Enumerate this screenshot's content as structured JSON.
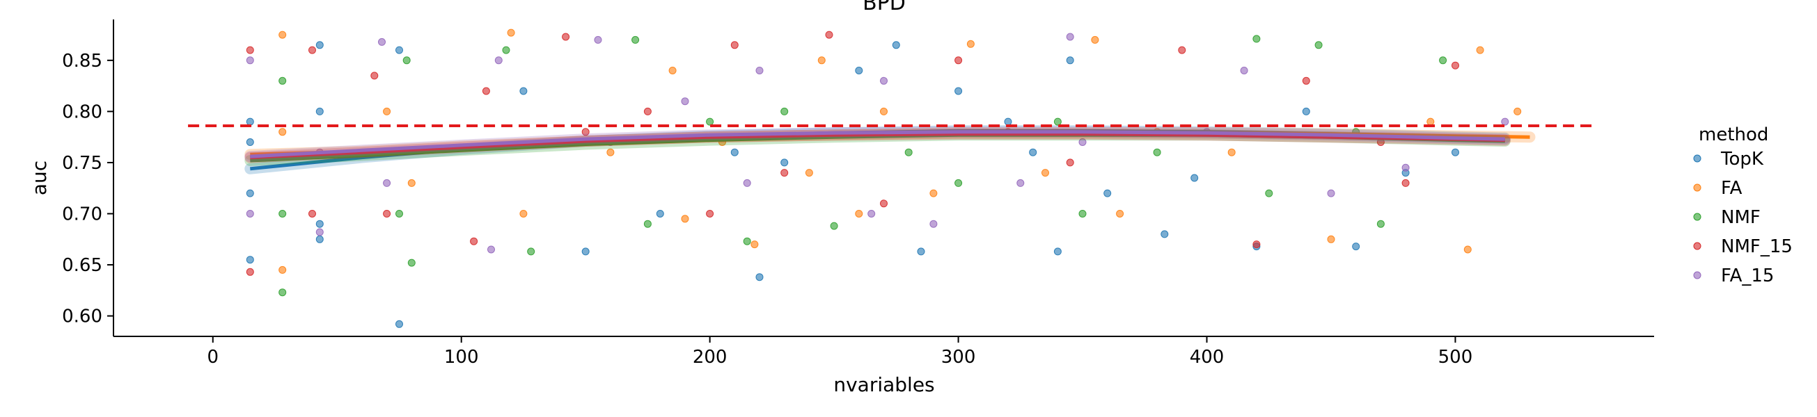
{
  "chart_data": {
    "type": "scatter",
    "title": "BPD",
    "xlabel": "nvariables",
    "ylabel": "auc",
    "xlim": [
      -40,
      580
    ],
    "ylim": [
      0.58,
      0.89
    ],
    "xticks": [
      0,
      100,
      200,
      300,
      400,
      500
    ],
    "yticks": [
      0.6,
      0.65,
      0.7,
      0.75,
      0.8,
      0.85
    ],
    "grid": false,
    "legend": {
      "title": "method",
      "placement": "outside-right"
    },
    "reference_line": {
      "y": 0.786,
      "color": "#e31a1c",
      "style": "dashed",
      "x_range": [
        -10,
        555
      ]
    },
    "series": [
      {
        "name": "TopK",
        "color": "#1f77b4",
        "trend": {
          "x": [
            15,
            60,
            100,
            150,
            200,
            250,
            300,
            350,
            400,
            450,
            500,
            520
          ],
          "y": [
            0.744,
            0.755,
            0.763,
            0.771,
            0.776,
            0.779,
            0.781,
            0.781,
            0.78,
            0.778,
            0.775,
            0.774
          ]
        },
        "points": [
          [
            15,
            0.655
          ],
          [
            15,
            0.72
          ],
          [
            15,
            0.77
          ],
          [
            15,
            0.79
          ],
          [
            43,
            0.865
          ],
          [
            43,
            0.8
          ],
          [
            43,
            0.69
          ],
          [
            43,
            0.675
          ],
          [
            75,
            0.592
          ],
          [
            75,
            0.86
          ],
          [
            150,
            0.663
          ],
          [
            220,
            0.638
          ],
          [
            260,
            0.84
          ],
          [
            275,
            0.865
          ],
          [
            285,
            0.663
          ],
          [
            300,
            0.82
          ],
          [
            320,
            0.79
          ],
          [
            340,
            0.663
          ],
          [
            345,
            0.85
          ],
          [
            360,
            0.72
          ],
          [
            383,
            0.68
          ],
          [
            395,
            0.735
          ],
          [
            420,
            0.668
          ],
          [
            440,
            0.8
          ],
          [
            460,
            0.668
          ],
          [
            480,
            0.74
          ],
          [
            500,
            0.76
          ],
          [
            230,
            0.75
          ],
          [
            180,
            0.7
          ],
          [
            125,
            0.82
          ],
          [
            210,
            0.76
          ],
          [
            330,
            0.76
          ]
        ]
      },
      {
        "name": "FA",
        "color": "#ff7f0e",
        "trend": {
          "x": [
            15,
            60,
            100,
            150,
            200,
            250,
            300,
            350,
            400,
            450,
            500,
            530
          ],
          "y": [
            0.758,
            0.761,
            0.766,
            0.771,
            0.775,
            0.777,
            0.779,
            0.779,
            0.779,
            0.778,
            0.776,
            0.775
          ]
        },
        "points": [
          [
            28,
            0.875
          ],
          [
            28,
            0.645
          ],
          [
            28,
            0.78
          ],
          [
            70,
            0.8
          ],
          [
            80,
            0.73
          ],
          [
            120,
            0.877
          ],
          [
            125,
            0.7
          ],
          [
            185,
            0.84
          ],
          [
            190,
            0.695
          ],
          [
            205,
            0.77
          ],
          [
            218,
            0.67
          ],
          [
            245,
            0.85
          ],
          [
            260,
            0.7
          ],
          [
            290,
            0.72
          ],
          [
            305,
            0.866
          ],
          [
            355,
            0.87
          ],
          [
            365,
            0.7
          ],
          [
            380,
            0.78
          ],
          [
            450,
            0.675
          ],
          [
            505,
            0.665
          ],
          [
            510,
            0.86
          ],
          [
            525,
            0.8
          ],
          [
            270,
            0.8
          ],
          [
            335,
            0.74
          ],
          [
            410,
            0.76
          ],
          [
            490,
            0.79
          ],
          [
            160,
            0.76
          ],
          [
            240,
            0.74
          ]
        ]
      },
      {
        "name": "NMF",
        "color": "#2ca02c",
        "trend": {
          "x": [
            15,
            60,
            100,
            150,
            200,
            250,
            300,
            350,
            400,
            450,
            500,
            520
          ],
          "y": [
            0.752,
            0.757,
            0.762,
            0.768,
            0.772,
            0.775,
            0.777,
            0.777,
            0.777,
            0.775,
            0.772,
            0.771
          ]
        },
        "points": [
          [
            28,
            0.623
          ],
          [
            28,
            0.83
          ],
          [
            28,
            0.7
          ],
          [
            75,
            0.7
          ],
          [
            78,
            0.85
          ],
          [
            80,
            0.652
          ],
          [
            118,
            0.86
          ],
          [
            128,
            0.663
          ],
          [
            170,
            0.87
          ],
          [
            175,
            0.69
          ],
          [
            215,
            0.673
          ],
          [
            230,
            0.8
          ],
          [
            250,
            0.688
          ],
          [
            300,
            0.73
          ],
          [
            340,
            0.79
          ],
          [
            350,
            0.7
          ],
          [
            420,
            0.871
          ],
          [
            425,
            0.72
          ],
          [
            445,
            0.865
          ],
          [
            470,
            0.69
          ],
          [
            495,
            0.85
          ],
          [
            150,
            0.77
          ],
          [
            200,
            0.79
          ],
          [
            280,
            0.76
          ],
          [
            380,
            0.76
          ],
          [
            460,
            0.78
          ]
        ]
      },
      {
        "name": "NMF_15",
        "color": "#d62728",
        "trend": {
          "x": [
            15,
            60,
            100,
            150,
            200,
            250,
            300,
            350,
            400,
            450,
            500,
            520
          ],
          "y": [
            0.755,
            0.76,
            0.765,
            0.771,
            0.775,
            0.777,
            0.778,
            0.778,
            0.777,
            0.775,
            0.773,
            0.772
          ]
        },
        "points": [
          [
            15,
            0.643
          ],
          [
            15,
            0.86
          ],
          [
            40,
            0.86
          ],
          [
            40,
            0.7
          ],
          [
            65,
            0.835
          ],
          [
            70,
            0.7
          ],
          [
            105,
            0.673
          ],
          [
            110,
            0.82
          ],
          [
            142,
            0.873
          ],
          [
            150,
            0.78
          ],
          [
            200,
            0.7
          ],
          [
            210,
            0.865
          ],
          [
            248,
            0.875
          ],
          [
            270,
            0.71
          ],
          [
            300,
            0.85
          ],
          [
            345,
            0.75
          ],
          [
            390,
            0.86
          ],
          [
            420,
            0.67
          ],
          [
            440,
            0.83
          ],
          [
            480,
            0.73
          ],
          [
            500,
            0.845
          ],
          [
            175,
            0.8
          ],
          [
            230,
            0.74
          ],
          [
            320,
            0.78
          ],
          [
            470,
            0.77
          ]
        ]
      },
      {
        "name": "FA_15",
        "color": "#9467bd",
        "trend": {
          "x": [
            15,
            60,
            100,
            150,
            200,
            250,
            300,
            350,
            400,
            450,
            500,
            520
          ],
          "y": [
            0.756,
            0.762,
            0.767,
            0.773,
            0.777,
            0.779,
            0.78,
            0.78,
            0.779,
            0.777,
            0.774,
            0.773
          ]
        },
        "points": [
          [
            15,
            0.7
          ],
          [
            15,
            0.85
          ],
          [
            43,
            0.76
          ],
          [
            43,
            0.682
          ],
          [
            68,
            0.868
          ],
          [
            70,
            0.73
          ],
          [
            112,
            0.665
          ],
          [
            115,
            0.85
          ],
          [
            155,
            0.87
          ],
          [
            160,
            0.77
          ],
          [
            215,
            0.73
          ],
          [
            220,
            0.84
          ],
          [
            265,
            0.7
          ],
          [
            270,
            0.83
          ],
          [
            325,
            0.73
          ],
          [
            345,
            0.873
          ],
          [
            350,
            0.77
          ],
          [
            415,
            0.84
          ],
          [
            450,
            0.72
          ],
          [
            480,
            0.745
          ],
          [
            520,
            0.79
          ],
          [
            190,
            0.81
          ],
          [
            290,
            0.69
          ],
          [
            400,
            0.78
          ]
        ]
      }
    ]
  }
}
